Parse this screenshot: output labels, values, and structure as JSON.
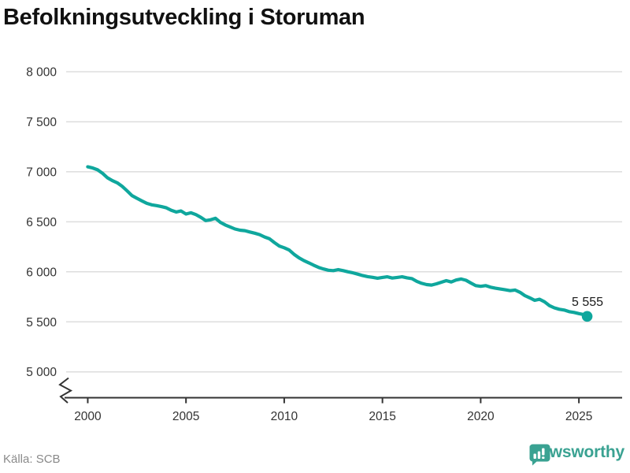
{
  "title": "Befolkningsutveckling i Storuman",
  "source": "Källa: SCB",
  "logo": {
    "label": "Newsworthy",
    "icon": "newsworthy-speech-bubble-bar-chart-icon"
  },
  "annotation": {
    "last_value_label": "5 555"
  },
  "colors": {
    "line": "#0FA79D",
    "dot": "#0FA79D",
    "logo": "#3AA292",
    "grid": "#DDDDDD",
    "axis": "#333333",
    "tick_text": "#333333",
    "title_text": "#111111",
    "muted_text": "#8A8A8A",
    "annotation_text": "#1A1A1A"
  },
  "chart_data": {
    "type": "line",
    "title": "Befolkningsutveckling i Storuman",
    "xlabel": "",
    "ylabel": "",
    "grid": "horizontal",
    "legend": "none",
    "axis_break_bottom_left": true,
    "xlim": [
      1998.9,
      2027.2
    ],
    "ylim": [
      5000,
      8000
    ],
    "x_ticks": [
      2000,
      2005,
      2010,
      2015,
      2020,
      2025
    ],
    "x_tick_labels": [
      "2000",
      "2005",
      "2010",
      "2015",
      "2020",
      "2025"
    ],
    "y_ticks": [
      5000,
      5500,
      6000,
      6500,
      7000,
      7500,
      8000
    ],
    "y_tick_labels": [
      "5 000",
      "5 500",
      "6 000",
      "6 500",
      "7 000",
      "7 500",
      "8 000"
    ],
    "last_point": {
      "x": 2025.42,
      "y": 5555,
      "label": "5 555"
    },
    "points": [
      [
        2000.0,
        7050
      ],
      [
        2000.25,
        7038
      ],
      [
        2000.5,
        7020
      ],
      [
        2000.75,
        6985
      ],
      [
        2001.0,
        6940
      ],
      [
        2001.25,
        6912
      ],
      [
        2001.5,
        6890
      ],
      [
        2001.75,
        6855
      ],
      [
        2002.0,
        6810
      ],
      [
        2002.25,
        6762
      ],
      [
        2002.5,
        6735
      ],
      [
        2002.75,
        6710
      ],
      [
        2003.0,
        6685
      ],
      [
        2003.25,
        6670
      ],
      [
        2003.5,
        6662
      ],
      [
        2003.75,
        6652
      ],
      [
        2004.0,
        6640
      ],
      [
        2004.25,
        6615
      ],
      [
        2004.5,
        6598
      ],
      [
        2004.75,
        6608
      ],
      [
        2005.0,
        6578
      ],
      [
        2005.25,
        6590
      ],
      [
        2005.5,
        6572
      ],
      [
        2005.75,
        6545
      ],
      [
        2006.0,
        6512
      ],
      [
        2006.25,
        6520
      ],
      [
        2006.5,
        6535
      ],
      [
        2006.75,
        6495
      ],
      [
        2007.0,
        6468
      ],
      [
        2007.25,
        6448
      ],
      [
        2007.5,
        6428
      ],
      [
        2007.75,
        6416
      ],
      [
        2008.0,
        6411
      ],
      [
        2008.25,
        6398
      ],
      [
        2008.5,
        6386
      ],
      [
        2008.75,
        6372
      ],
      [
        2009.0,
        6348
      ],
      [
        2009.25,
        6330
      ],
      [
        2009.5,
        6292
      ],
      [
        2009.75,
        6258
      ],
      [
        2010.0,
        6240
      ],
      [
        2010.25,
        6218
      ],
      [
        2010.5,
        6175
      ],
      [
        2010.75,
        6140
      ],
      [
        2011.0,
        6112
      ],
      [
        2011.25,
        6090
      ],
      [
        2011.5,
        6066
      ],
      [
        2011.75,
        6044
      ],
      [
        2012.0,
        6028
      ],
      [
        2012.25,
        6016
      ],
      [
        2012.5,
        6012
      ],
      [
        2012.75,
        6022
      ],
      [
        2013.0,
        6012
      ],
      [
        2013.25,
        6000
      ],
      [
        2013.5,
        5990
      ],
      [
        2013.75,
        5976
      ],
      [
        2014.0,
        5962
      ],
      [
        2014.25,
        5952
      ],
      [
        2014.5,
        5945
      ],
      [
        2014.75,
        5936
      ],
      [
        2015.0,
        5944
      ],
      [
        2015.25,
        5950
      ],
      [
        2015.5,
        5938
      ],
      [
        2015.75,
        5944
      ],
      [
        2016.0,
        5950
      ],
      [
        2016.25,
        5940
      ],
      [
        2016.5,
        5932
      ],
      [
        2016.75,
        5905
      ],
      [
        2017.0,
        5885
      ],
      [
        2017.25,
        5872
      ],
      [
        2017.5,
        5868
      ],
      [
        2017.75,
        5880
      ],
      [
        2018.0,
        5896
      ],
      [
        2018.25,
        5912
      ],
      [
        2018.5,
        5898
      ],
      [
        2018.75,
        5918
      ],
      [
        2019.0,
        5928
      ],
      [
        2019.25,
        5916
      ],
      [
        2019.5,
        5888
      ],
      [
        2019.75,
        5862
      ],
      [
        2020.0,
        5855
      ],
      [
        2020.25,
        5862
      ],
      [
        2020.5,
        5846
      ],
      [
        2020.75,
        5836
      ],
      [
        2021.0,
        5828
      ],
      [
        2021.25,
        5820
      ],
      [
        2021.5,
        5812
      ],
      [
        2021.75,
        5818
      ],
      [
        2022.0,
        5795
      ],
      [
        2022.25,
        5762
      ],
      [
        2022.5,
        5740
      ],
      [
        2022.75,
        5715
      ],
      [
        2023.0,
        5726
      ],
      [
        2023.25,
        5700
      ],
      [
        2023.5,
        5662
      ],
      [
        2023.75,
        5640
      ],
      [
        2024.0,
        5626
      ],
      [
        2024.25,
        5618
      ],
      [
        2024.5,
        5602
      ],
      [
        2024.75,
        5594
      ],
      [
        2025.0,
        5582
      ],
      [
        2025.25,
        5572
      ],
      [
        2025.42,
        5555
      ]
    ]
  }
}
